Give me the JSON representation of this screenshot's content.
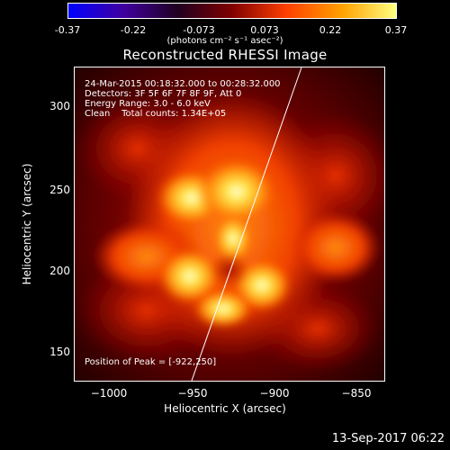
{
  "colorbar": {
    "ticks": [
      "-0.37",
      "-0.22",
      "-0.073",
      "0.073",
      "0.22",
      "0.37"
    ],
    "units_text": "(photons cm⁻² s⁻¹ asec⁻²)",
    "colors": [
      "#0000ff",
      "#4000a0",
      "#200020",
      "#800000",
      "#ff4000",
      "#ffa000",
      "#ffff80"
    ]
  },
  "title": "Reconstructed RHESSI Image",
  "annotation": {
    "line1": "24-Mar-2015 00:18:32.000 to 00:28:32.000",
    "line2": "Detectors: 3F 5F 6F 7F 8F 9F, Att 0",
    "line3": "Energy Range: 3.0 - 6.0 keV",
    "line4": "Clean    Total counts: 1.34E+05"
  },
  "peak_text": "Position of Peak = [-922,250]",
  "axes": {
    "xlabel": "Heliocentric X (arcsec)",
    "ylabel": "Heliocentric Y (arcsec)",
    "xticks": [
      "−1000",
      "−950",
      "−900",
      "−850"
    ],
    "yticks": [
      "300",
      "250",
      "200",
      "150"
    ]
  },
  "timestamp": "13-Sep-2017 06:22"
}
